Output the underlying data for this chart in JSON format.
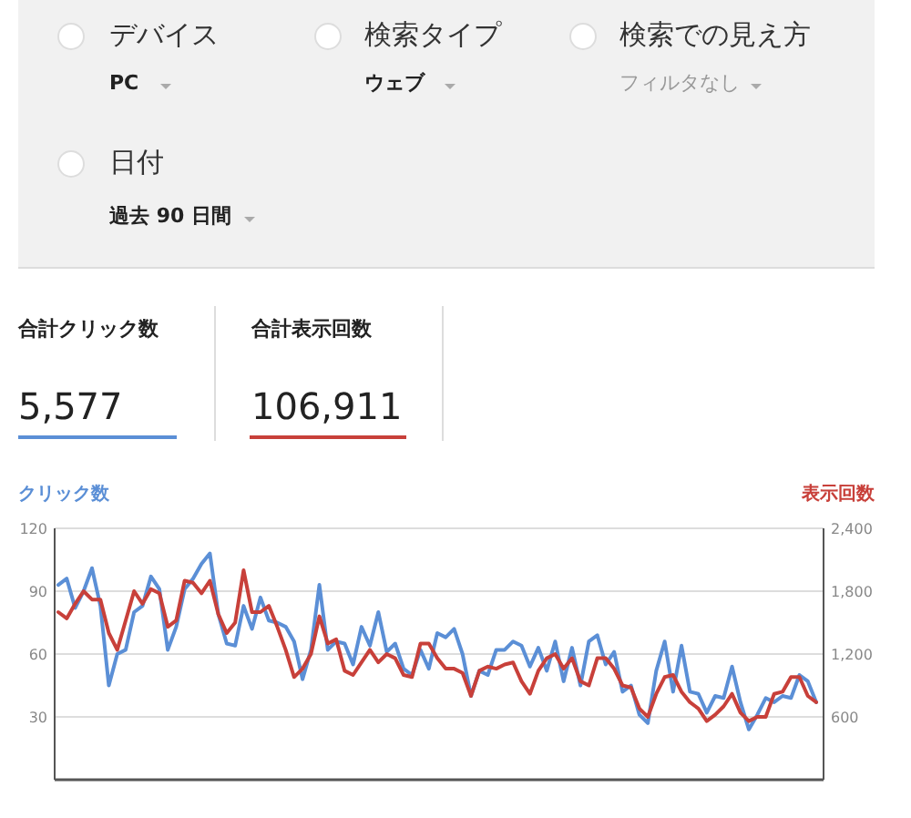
{
  "chart_data": {
    "type": "line",
    "ylabel": "クリック数",
    "y2label": "表示回数",
    "annotations": [
      "デバイス",
      "PC",
      "検索タイプ",
      "ウェブ",
      "検索での見え方",
      "フィルタなし",
      "日付",
      "過去 90 日間",
      "合計クリック数",
      "5,577",
      "合計表示回数",
      "106,911"
    ],
    "categories": [
      null,
      null,
      null,
      null,
      null,
      null,
      null,
      null,
      null,
      null,
      null,
      null,
      null,
      null,
      null,
      null,
      null,
      null,
      null,
      null,
      null,
      null,
      null,
      null,
      null,
      null,
      null,
      null,
      null,
      null,
      null,
      null,
      null,
      null,
      null,
      null,
      null,
      null,
      null,
      null,
      null,
      null,
      null,
      null,
      null,
      null,
      null,
      null,
      null,
      null,
      null,
      null,
      null,
      null,
      null,
      null,
      null,
      null,
      null,
      null,
      null,
      null,
      null,
      null,
      null,
      null,
      null,
      null,
      null,
      null,
      null,
      null,
      null,
      null,
      null,
      null,
      null,
      null,
      null,
      null,
      null,
      null,
      null,
      null,
      null,
      null,
      null,
      null,
      null,
      null,
      null
    ],
    "series": [
      {
        "color": "#5b8fd6",
        "values": [
          93,
          96,
          82,
          90,
          101,
          83,
          45,
          60,
          62,
          80,
          83,
          97,
          91,
          62,
          73,
          91,
          96,
          103,
          108,
          79,
          65,
          64,
          83,
          72,
          87,
          76,
          75,
          73,
          66,
          48,
          62,
          93,
          62,
          66,
          65,
          55,
          73,
          64,
          80,
          61,
          65,
          53,
          50,
          62,
          53,
          70,
          68,
          72,
          60,
          40,
          52,
          50,
          62,
          62,
          66,
          64,
          54,
          63,
          52,
          66,
          47,
          63,
          45,
          66,
          69,
          55,
          61,
          42,
          45,
          31,
          27,
          52,
          66,
          42,
          64,
          42,
          41,
          32,
          40,
          39,
          54,
          37,
          24,
          31,
          39,
          37,
          40,
          39,
          50,
          47,
          37
        ]
      },
      {
        "color": "#c8403a",
        "axis": "y2",
        "values": [
          1600,
          1540,
          1680,
          1800,
          1720,
          1720,
          1400,
          1240,
          1520,
          1800,
          1680,
          1820,
          1780,
          1460,
          1520,
          1900,
          1880,
          1780,
          1900,
          1580,
          1400,
          1500,
          2000,
          1600,
          1600,
          1660,
          1460,
          1240,
          980,
          1060,
          1200,
          1560,
          1300,
          1340,
          1040,
          1000,
          1120,
          1240,
          1120,
          1200,
          1160,
          1000,
          980,
          1300,
          1300,
          1160,
          1060,
          1060,
          1020,
          800,
          1040,
          1080,
          1060,
          1100,
          1120,
          940,
          820,
          1040,
          1160,
          1200,
          1060,
          1160,
          940,
          900,
          1160,
          1160,
          1060,
          900,
          880,
          680,
          600,
          820,
          980,
          1000,
          840,
          740,
          680,
          560,
          620,
          700,
          820,
          640,
          560,
          600,
          600,
          820,
          840,
          980,
          980,
          800,
          740
        ]
      }
    ],
    "ylim": [
      0,
      120
    ],
    "yticks": [
      {
        "value": 0,
        "label": null
      },
      30,
      60,
      90,
      120
    ],
    "y2lim": [
      0,
      2400
    ],
    "y2ticks": [
      {
        "value": 600,
        "label": "600"
      },
      {
        "value": 1200,
        "label": "1,200"
      },
      {
        "value": 1800,
        "label": "1,800"
      },
      {
        "value": 2400,
        "label": "2,400"
      }
    ],
    "grid": "y"
  }
}
